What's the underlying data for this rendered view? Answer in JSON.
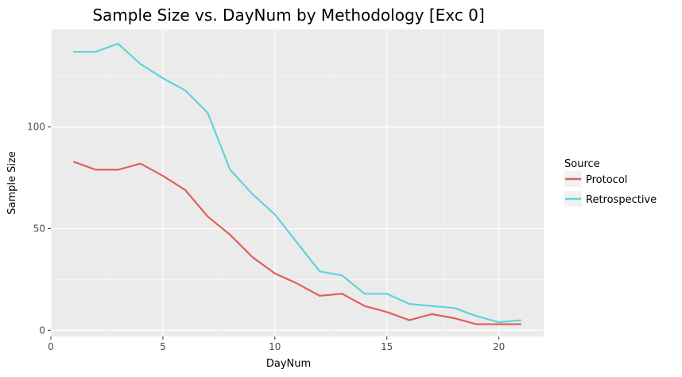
{
  "chart_data": {
    "type": "line",
    "title": "Sample Size vs. DayNum by Methodology [Exc 0]",
    "xlabel": "DayNum",
    "ylabel": "Sample Size",
    "xlim": [
      0,
      22
    ],
    "ylim": [
      -3,
      148
    ],
    "x_ticks": [
      0,
      5,
      10,
      15,
      20
    ],
    "y_ticks": [
      0,
      50,
      100
    ],
    "grid": true,
    "legend_title": "Source",
    "legend_position": "right",
    "series": [
      {
        "name": "Protocol",
        "color": "#e0605a",
        "x": [
          1,
          2,
          3,
          4,
          5,
          6,
          7,
          8,
          9,
          10,
          11,
          12,
          13,
          14,
          15,
          16,
          17,
          18,
          19,
          20,
          21
        ],
        "values": [
          83,
          79,
          79,
          82,
          76,
          69,
          56,
          47,
          36,
          28,
          23,
          17,
          18,
          12,
          9,
          5,
          8,
          6,
          3,
          3,
          3
        ]
      },
      {
        "name": "Retrospective",
        "color": "#5fd3dd",
        "x": [
          1,
          2,
          3,
          4,
          5,
          6,
          7,
          8,
          9,
          10,
          11,
          12,
          13,
          14,
          15,
          16,
          17,
          18,
          19,
          20,
          21
        ],
        "values": [
          137,
          137,
          141,
          131,
          124,
          118,
          107,
          79,
          67,
          57,
          43,
          29,
          27,
          18,
          18,
          13,
          12,
          11,
          7,
          4,
          5
        ]
      }
    ]
  }
}
